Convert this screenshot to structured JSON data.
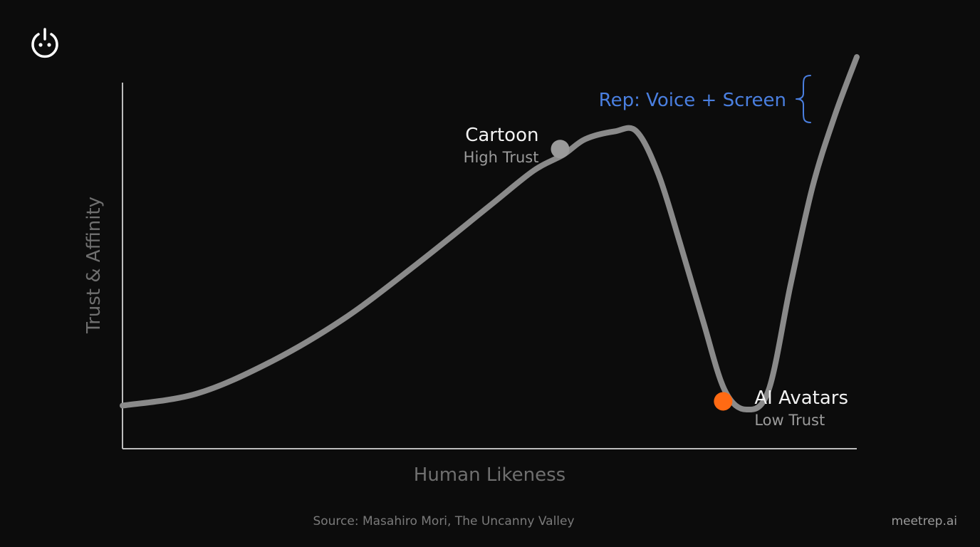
{
  "colors": {
    "background": "#0c0c0c",
    "axis": "#bdbdbd",
    "curve": "#8a8a8a",
    "axis_label": "#6f6f6f",
    "annotation_title": "#f2f2f2",
    "annotation_sub": "#9b9b9b",
    "cartoon_point": "#9a9a9a",
    "avatar_point": "#ff6a13",
    "rep_accent": "#4a7fe0",
    "footer": "#7a7a7a"
  },
  "logo": {
    "icon": "power-face-icon"
  },
  "chart_data": {
    "type": "line",
    "xlabel": "Human Likeness",
    "ylabel": "Trust & Affinity",
    "xlim": [
      0,
      100
    ],
    "ylim": [
      0,
      100
    ],
    "grid": false,
    "series": [
      {
        "x": [
          0,
          10,
          20,
          30,
          40,
          50,
          56,
          60,
          63,
          67,
          70,
          73,
          76,
          79,
          82,
          85,
          88,
          91,
          94,
          97,
          100
        ],
        "values": [
          11,
          14,
          22,
          33,
          47,
          62,
          71,
          75,
          79,
          81,
          81,
          70,
          52,
          33,
          15,
          10,
          15,
          42,
          67,
          85,
          100
        ]
      }
    ],
    "annotations": [
      {
        "id": "cartoon",
        "x": 59.6,
        "y": 76.5,
        "title": "Cartoon",
        "subtitle": "High Trust"
      },
      {
        "id": "avatars",
        "x": 81.8,
        "y": 12.1,
        "title": "AI Avatars",
        "subtitle": "Low Trust"
      },
      {
        "id": "rep",
        "x": 92.5,
        "y": 97,
        "label": "Rep: Voice + Screen",
        "icon": "brace-icon"
      }
    ]
  },
  "footer": {
    "source": "Source: Masahiro Mori, The Uncanny Valley",
    "brand": "meetrep.ai"
  }
}
